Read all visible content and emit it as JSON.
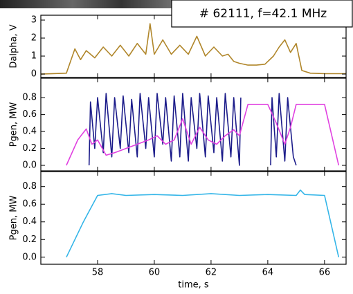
{
  "chart_data": [
    {
      "type": "line",
      "annotation": "# 62111, f=42.1 MHz",
      "ylabel": "Dalpha, V",
      "xlim": [
        56,
        66.76
      ],
      "xticks": [
        58,
        60,
        62,
        64,
        66
      ],
      "ylim": [
        -0.19,
        3.27
      ],
      "yticks": [
        0,
        1,
        2,
        3
      ],
      "series": [
        {
          "color": "#b0862a",
          "x": [
            56,
            56.9,
            57.2,
            57.4,
            57.6,
            57.9,
            58.2,
            58.5,
            58.8,
            59.1,
            59.4,
            59.7,
            59.85,
            60.0,
            60.3,
            60.6,
            60.9,
            61.2,
            61.5,
            61.8,
            62.1,
            62.4,
            62.6,
            62.8,
            63.0,
            63.3,
            63.6,
            63.9,
            64.2,
            64.4,
            64.6,
            64.8,
            65.0,
            65.2,
            65.5,
            66,
            66.76
          ],
          "values": [
            0,
            0.05,
            1.4,
            0.8,
            1.3,
            0.9,
            1.5,
            1.0,
            1.6,
            1.0,
            1.7,
            1.1,
            2.8,
            1.1,
            1.9,
            1.1,
            1.6,
            1.1,
            2.1,
            1.0,
            1.5,
            1.0,
            1.1,
            0.7,
            0.6,
            0.5,
            0.5,
            0.55,
            1.0,
            1.5,
            1.9,
            1.2,
            1.7,
            0.2,
            0.05,
            0.02,
            0.02
          ]
        }
      ]
    },
    {
      "type": "line",
      "ylabel": "Pgen, MW",
      "xlim": [
        56,
        66.76
      ],
      "xticks": [
        58,
        60,
        62,
        64,
        66
      ],
      "ylim": [
        -0.065,
        1.03
      ],
      "yticks": [
        {
          "value": 0,
          "label": "0.0"
        },
        0.2,
        0.4,
        0.6,
        0.8
      ],
      "series": [
        {
          "color": "#1c1c8a",
          "x": [
            57.7,
            57.75,
            57.9,
            58.0,
            58.2,
            58.3,
            58.5,
            58.6,
            58.8,
            58.9,
            59.1,
            59.2,
            59.4,
            59.5,
            59.7,
            59.8,
            60.0,
            60.1,
            60.3,
            60.4,
            60.6,
            60.7,
            60.9,
            61.0,
            61.2,
            61.3,
            61.5,
            61.6,
            61.8,
            61.9,
            62.1,
            62.2,
            62.4,
            62.5,
            62.7,
            62.8,
            63.0,
            63.05,
            63.1,
            64.1,
            64.15,
            64.3,
            64.4,
            64.6,
            64.7,
            64.9,
            65.0
          ],
          "values": [
            0,
            0.75,
            0.2,
            0.8,
            0.15,
            0.85,
            0.1,
            0.8,
            0.2,
            0.82,
            0.15,
            0.78,
            0.1,
            0.85,
            0.2,
            0.8,
            0.1,
            0.85,
            0.25,
            0.8,
            0.05,
            0.82,
            0.1,
            0.85,
            0.05,
            0.8,
            0.2,
            0.85,
            0.1,
            0.82,
            0.15,
            0.8,
            0.05,
            0.85,
            0.1,
            0.8,
            0,
            0.8,
            null,
            0,
            0.8,
            0.1,
            0.85,
            0.05,
            0.8,
            0.1,
            0
          ]
        },
        {
          "color": "#e040e0",
          "x": [
            56.9,
            57.3,
            57.6,
            57.8,
            58.0,
            58.3,
            58.6,
            59.0,
            59.4,
            59.8,
            60.1,
            60.4,
            60.7,
            61.0,
            61.3,
            61.6,
            61.9,
            62.2,
            62.5,
            62.8,
            63.0,
            63.3,
            64.0,
            64.3,
            64.6,
            64.8,
            65.0,
            65.3,
            66.0,
            66.5
          ],
          "values": [
            0,
            0.3,
            0.43,
            0.25,
            0.3,
            0.12,
            0.15,
            0.2,
            0.25,
            0.3,
            0.35,
            0.25,
            0.3,
            0.55,
            0.25,
            0.45,
            0.3,
            0.25,
            0.35,
            0.42,
            0.35,
            0.72,
            0.72,
            0.5,
            0.25,
            0.45,
            0.72,
            0.72,
            0.72,
            0
          ]
        }
      ]
    },
    {
      "type": "line",
      "ylabel": "Pgen, MW",
      "xlabel": "time, s",
      "show_xtick_labels": true,
      "xlim": [
        56,
        66.76
      ],
      "xticks": [
        58,
        60,
        62,
        64,
        66
      ],
      "ylim": [
        -0.08,
        0.97
      ],
      "yticks": [
        {
          "value": 0,
          "label": "0.0"
        },
        0.2,
        0.4,
        0.6,
        0.8
      ],
      "series": [
        {
          "color": "#33b5e8",
          "x": [
            56.9,
            57.5,
            58.0,
            58.5,
            59,
            60,
            61,
            62,
            63,
            64,
            65,
            65.15,
            65.3,
            66.0,
            66.5
          ],
          "values": [
            0,
            0.4,
            0.7,
            0.72,
            0.7,
            0.71,
            0.7,
            0.72,
            0.7,
            0.71,
            0.7,
            0.76,
            0.71,
            0.7,
            0
          ]
        }
      ]
    }
  ]
}
